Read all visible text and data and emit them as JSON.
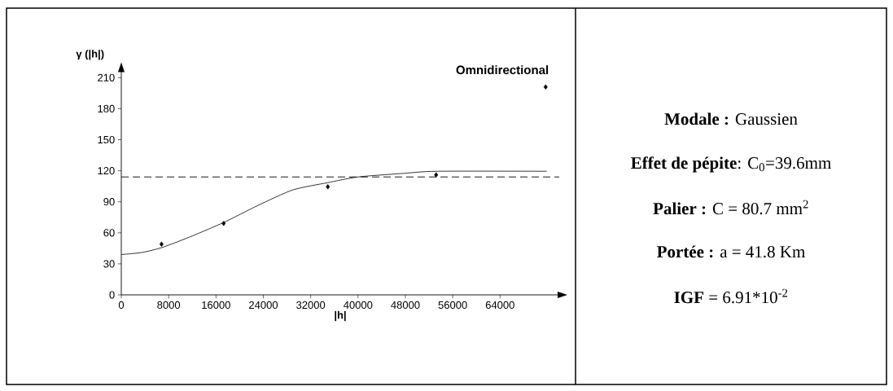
{
  "chart_data": [
    {
      "type": "scatter",
      "title": "Omnidirectional",
      "xlabel": "|h|",
      "ylabel": "γ (|h|)",
      "xlim": [
        0,
        74000
      ],
      "ylim": [
        0,
        220
      ],
      "xticks": [
        0,
        8000,
        16000,
        24000,
        32000,
        40000,
        48000,
        56000,
        64000
      ],
      "yticks": [
        0,
        30,
        60,
        90,
        120,
        150,
        180,
        210
      ],
      "series": [
        {
          "type": "scatter",
          "color": "#000000",
          "marker": "diamond",
          "x": [
            6800,
            17300,
            34900,
            53200,
            71700
          ],
          "values": [
            49,
            69,
            104.5,
            116,
            201
          ]
        },
        {
          "type": "line",
          "color": "#000000",
          "marker": "none",
          "line_style": "solid",
          "x": [
            0,
            3500,
            7000,
            12000,
            17300,
            23100,
            29000,
            34900,
            40000,
            47800,
            53300,
            71900
          ],
          "values": [
            39,
            41,
            46,
            57,
            70,
            86.5,
            101.5,
            108.5,
            114,
            117.5,
            119.5,
            119.5
          ]
        }
      ],
      "ref_lines": [
        {
          "axis": "y",
          "value": 114,
          "color": "#000000",
          "line_style": "dashed"
        }
      ]
    },
    {
      "type": "other",
      "annotations": [
        "**Modale :** Gaussien",
        "**Effet de pépite**: C$_{0}$=39.6mm",
        "**Palier :** C = 80.7 mm$^{2}$",
        "**Portée :** a = 41.8 Km",
        "**IGF** = 6.91*10$^{-2}$"
      ]
    }
  ]
}
